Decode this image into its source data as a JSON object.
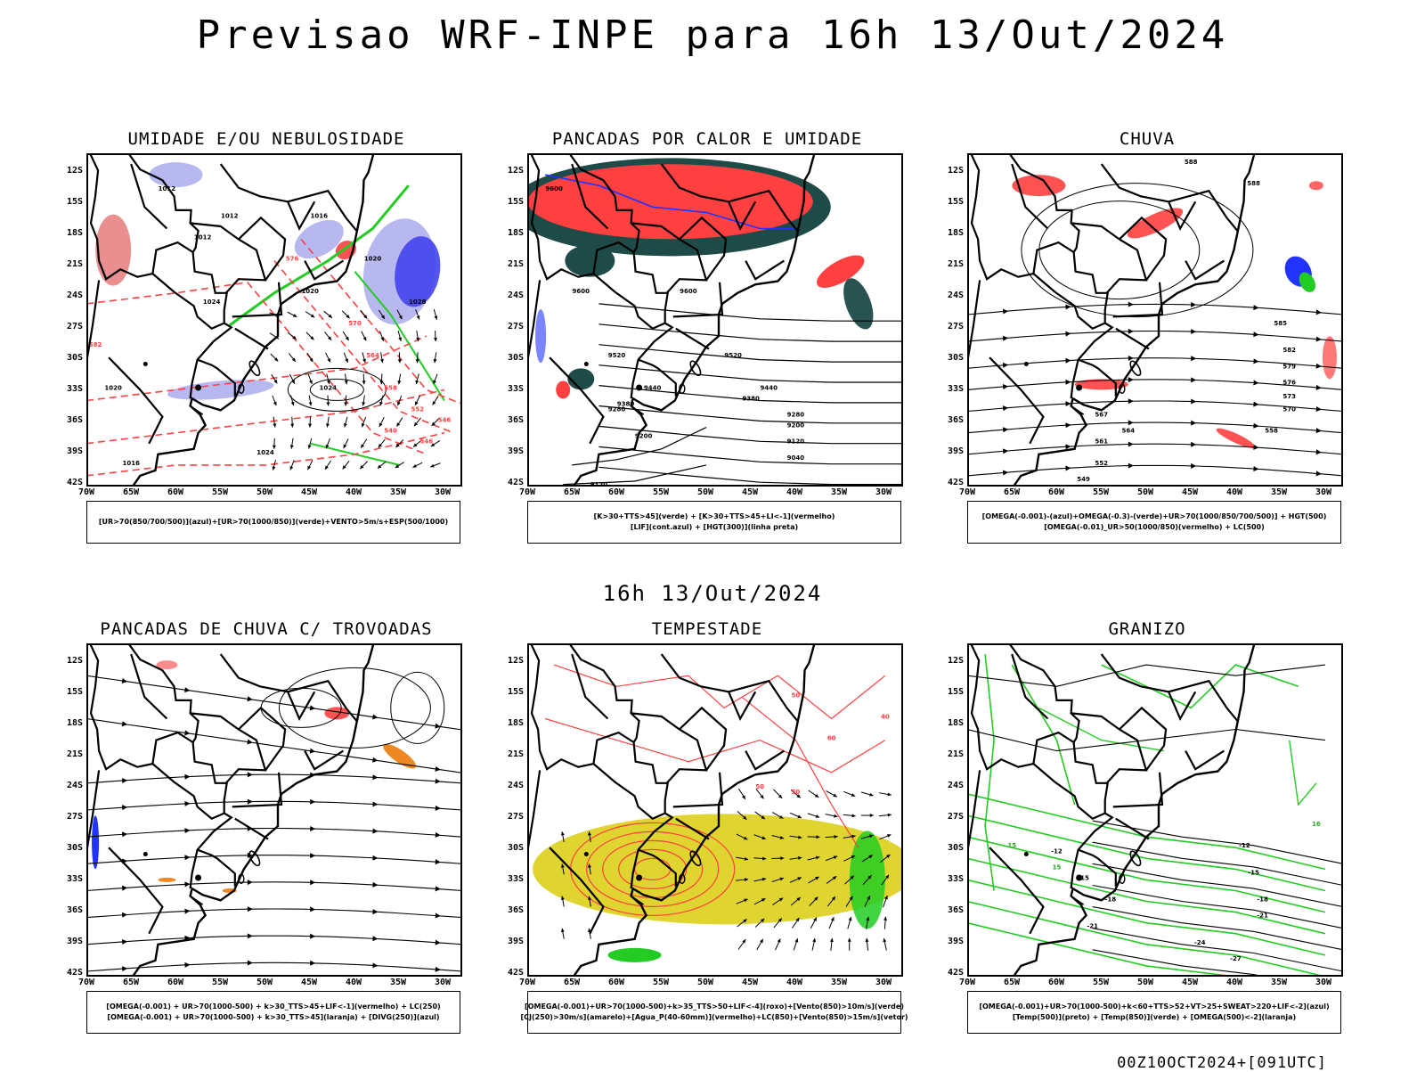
{
  "header": {
    "title": "Previsao WRF-INPE  para 16h 13/Out/2024",
    "mid_title": "16h 13/Out/2024",
    "footer": "00Z10OCT2024+[091UTC]"
  },
  "axes": {
    "lat_labels": [
      "12S",
      "15S",
      "18S",
      "21S",
      "24S",
      "27S",
      "30S",
      "33S",
      "36S",
      "39S",
      "42S"
    ],
    "lon_labels": [
      "70W",
      "65W",
      "60W",
      "55W",
      "50W",
      "45W",
      "40W",
      "35W",
      "30W"
    ]
  },
  "colors": {
    "red": "#ff4040",
    "green": "#22cc22",
    "blue": "#2233ff",
    "lightblue": "#b8b8f0",
    "darkteal": "#1e4a48",
    "yellow": "#e0d430",
    "orange": "#ee8822"
  },
  "panels": [
    {
      "title": "UMIDADE E/OU NEBULOSIDADE",
      "legend": [
        "[UR>70(850/700/500)](azul)+[UR>70(1000/850)](verde)+VENTO>5m/s+ESP(500/1000)"
      ],
      "contour_labels": [
        "1012",
        "1012",
        "1012",
        "1016",
        "1020",
        "1020",
        "1024",
        "1024",
        "1024",
        "1028",
        "1020",
        "1016",
        "576",
        "570",
        "564",
        "558",
        "552",
        "546",
        "540",
        "546",
        "582"
      ]
    },
    {
      "title": "PANCADAS POR CALOR E UMIDADE",
      "legend": [
        "[K>30+TTS>45](verde) + [K>30+TTS>45+LI<-1](vermelho)",
        "[LIF](cont.azul) + [HGT(300)](linha preta)"
      ],
      "contour_labels": [
        "9600",
        "9600",
        "9600",
        "9520",
        "9520",
        "9440",
        "9440",
        "9380",
        "9380",
        "9280",
        "9280",
        "9200",
        "9200",
        "9120",
        "9040",
        "9120"
      ]
    },
    {
      "title": "CHUVA",
      "legend": [
        "[OMEGA(-0.001)-(azul)+OMEGA(-0.3)-(verde)+UR>70(1000/850/700/500)] + HGT(500)",
        "[OMEGA(-0.01)_UR>50(1000/850)(vermelho) + LC(500)"
      ],
      "contour_labels": [
        "588",
        "588",
        "585",
        "582",
        "579",
        "576",
        "573",
        "570",
        "567",
        "564",
        "561",
        "558",
        "552",
        "549"
      ]
    },
    {
      "title": "PANCADAS DE CHUVA C/ TROVOADAS",
      "legend": [
        "[OMEGA(-0.001) + UR>70(1000-500) + k>30_TTS>45+LIF<-1](vermelho) + LC(250)",
        "[OMEGA(-0.001) + UR>70(1000-500) + k>30_TTS>45](laranja) + [DIVG(250)](azul)"
      ],
      "contour_labels": []
    },
    {
      "title": "TEMPESTADE",
      "legend": [
        "[OMEGA(-0.001)+UR>70(1000-500)+k>35_TTS>50+LIF<-4](roxo)+[Vento(850)>10m/s](verde)",
        "[CJ(250)>30m/s](amarelo)+[Agua_P(40-60mm)](vermelho)+LC(850)+[Vento(850)>15m/s](vetor)"
      ],
      "contour_labels": [
        "50",
        "60",
        "50",
        "40",
        "50"
      ]
    },
    {
      "title": "GRANIZO",
      "legend": [
        "[OMEGA(-0.001)+UR>70(1000-500)+k<60+TTS>52+VT>25+SWEAT>220+LIF<-2](azul)",
        "[Temp(500)](preto) + [Temp(850)](verde) + [OMEGA(500)<-2](laranja)"
      ],
      "contour_labels": [
        "-12",
        "-12",
        "-15",
        "-15",
        "-18",
        "-18",
        "-21",
        "-21",
        "-24",
        "-27",
        "16",
        "15",
        "15"
      ]
    }
  ]
}
